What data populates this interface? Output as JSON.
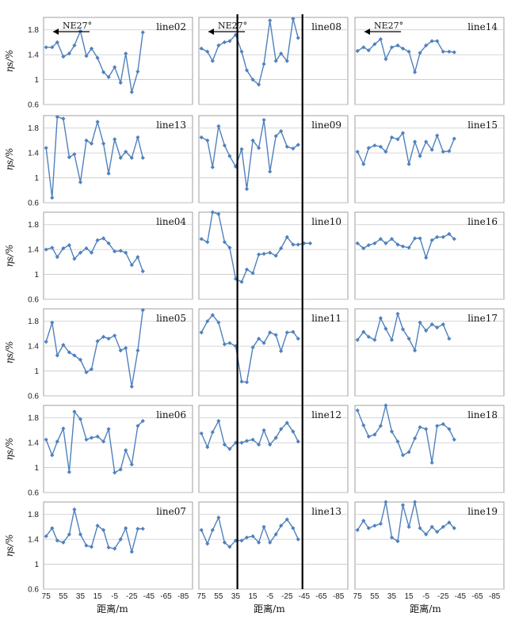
{
  "figure": {
    "x_axis_label": "距离/m",
    "y_axis_label": "ηs/%",
    "x_ticks": [
      "75",
      "55",
      "35",
      "15",
      "-5",
      "-25",
      "-45",
      "-65",
      "-85"
    ],
    "y_ticks": [
      "0.6",
      "1",
      "1.4",
      "1.8"
    ],
    "direction_label": "NE27°",
    "line_color": "#4F81BD",
    "marker_color": "#4F81BD",
    "vertical_markers_x": [
      33,
      -43
    ]
  },
  "chart_data": {
    "type": "line",
    "x": [
      75,
      68,
      62,
      55,
      48,
      42,
      35,
      28,
      22,
      15,
      8,
      2,
      -5,
      -12,
      -18,
      -25,
      -32,
      -38,
      -45,
      -52,
      -58,
      -65,
      -72,
      -78,
      -85,
      -92
    ],
    "xlim": [
      78,
      -96
    ],
    "ylim": [
      0.6,
      2.0
    ],
    "panels": [
      {
        "label": "line02",
        "col": 0,
        "row": 0,
        "arrow": true,
        "values": [
          1.52,
          1.52,
          1.6,
          1.37,
          1.42,
          1.55,
          1.78,
          1.38,
          1.5,
          1.35,
          1.12,
          1.04,
          1.2,
          0.95,
          1.42,
          0.8,
          1.13,
          1.76
        ]
      },
      {
        "label": "line08",
        "col": 1,
        "row": 0,
        "arrow": true,
        "values": [
          1.5,
          1.45,
          1.3,
          1.55,
          1.6,
          1.62,
          1.72,
          1.45,
          1.15,
          1.0,
          0.92,
          1.25,
          1.95,
          1.3,
          1.42,
          1.3,
          1.98,
          1.67
        ]
      },
      {
        "label": "line14",
        "col": 2,
        "row": 0,
        "arrow": true,
        "values": [
          1.46,
          1.52,
          1.47,
          1.57,
          1.65,
          1.33,
          1.52,
          1.55,
          1.5,
          1.45,
          1.12,
          1.43,
          1.55,
          1.62,
          1.62,
          1.45,
          1.45,
          1.44
        ]
      },
      {
        "label": "line13",
        "col": 0,
        "row": 1,
        "values": [
          1.48,
          0.68,
          1.98,
          1.95,
          1.33,
          1.38,
          0.93,
          1.6,
          1.55,
          1.9,
          1.55,
          1.07,
          1.62,
          1.32,
          1.42,
          1.32,
          1.65,
          1.32
        ]
      },
      {
        "label": "line09",
        "col": 1,
        "row": 1,
        "values": [
          1.65,
          1.6,
          1.17,
          1.83,
          1.52,
          1.35,
          1.18,
          1.46,
          0.82,
          1.6,
          1.48,
          1.93,
          1.1,
          1.67,
          1.75,
          1.5,
          1.47,
          1.53
        ]
      },
      {
        "label": "line15",
        "col": 2,
        "row": 1,
        "values": [
          1.42,
          1.22,
          1.48,
          1.52,
          1.5,
          1.42,
          1.65,
          1.62,
          1.72,
          1.22,
          1.58,
          1.35,
          1.58,
          1.45,
          1.68,
          1.42,
          1.43,
          1.63
        ]
      },
      {
        "label": "line04",
        "col": 0,
        "row": 2,
        "values": [
          1.4,
          1.43,
          1.28,
          1.42,
          1.47,
          1.25,
          1.35,
          1.42,
          1.35,
          1.55,
          1.58,
          1.5,
          1.37,
          1.38,
          1.35,
          1.15,
          1.28,
          1.05
        ]
      },
      {
        "label": "line10",
        "col": 1,
        "row": 2,
        "values": [
          1.57,
          1.52,
          2.0,
          1.97,
          1.52,
          1.43,
          0.93,
          0.88,
          1.08,
          1.02,
          1.32,
          1.33,
          1.35,
          1.3,
          1.42,
          1.6,
          1.48,
          1.48,
          1.5,
          1.5
        ]
      },
      {
        "label": "line16",
        "col": 2,
        "row": 2,
        "values": [
          1.5,
          1.42,
          1.47,
          1.5,
          1.57,
          1.5,
          1.57,
          1.48,
          1.45,
          1.43,
          1.58,
          1.58,
          1.27,
          1.55,
          1.6,
          1.6,
          1.65,
          1.57
        ]
      },
      {
        "label": "line05",
        "col": 0,
        "row": 3,
        "values": [
          1.47,
          1.78,
          1.25,
          1.42,
          1.3,
          1.25,
          1.18,
          0.98,
          1.03,
          1.48,
          1.55,
          1.52,
          1.57,
          1.33,
          1.37,
          0.75,
          1.33,
          1.98
        ]
      },
      {
        "label": "line11",
        "col": 1,
        "row": 3,
        "values": [
          1.62,
          1.8,
          1.9,
          1.78,
          1.43,
          1.45,
          1.4,
          0.83,
          0.82,
          1.38,
          1.52,
          1.45,
          1.62,
          1.58,
          1.32,
          1.62,
          1.63,
          1.52
        ]
      },
      {
        "label": "line17",
        "col": 2,
        "row": 3,
        "values": [
          1.5,
          1.63,
          1.55,
          1.5,
          1.85,
          1.68,
          1.5,
          1.92,
          1.67,
          1.52,
          1.33,
          1.78,
          1.65,
          1.75,
          1.7,
          1.75,
          1.52
        ]
      },
      {
        "label": "line06",
        "col": 0,
        "row": 4,
        "values": [
          1.45,
          1.2,
          1.42,
          1.63,
          0.93,
          1.9,
          1.78,
          1.45,
          1.48,
          1.5,
          1.42,
          1.62,
          0.92,
          0.97,
          1.28,
          1.05,
          1.67,
          1.75
        ]
      },
      {
        "label": "line12",
        "col": 1,
        "row": 4,
        "values": [
          1.55,
          1.33,
          1.57,
          1.75,
          1.37,
          1.3,
          1.4,
          1.4,
          1.43,
          1.45,
          1.37,
          1.6,
          1.37,
          1.48,
          1.62,
          1.72,
          1.58,
          1.42
        ]
      },
      {
        "label": "line18",
        "col": 2,
        "row": 4,
        "values": [
          1.92,
          1.68,
          1.5,
          1.53,
          1.67,
          2.0,
          1.58,
          1.42,
          1.2,
          1.25,
          1.47,
          1.65,
          1.62,
          1.08,
          1.67,
          1.7,
          1.62,
          1.45
        ]
      },
      {
        "label": "line07",
        "col": 0,
        "row": 5,
        "values": [
          1.45,
          1.58,
          1.38,
          1.35,
          1.48,
          1.88,
          1.48,
          1.3,
          1.28,
          1.62,
          1.55,
          1.27,
          1.25,
          1.4,
          1.58,
          1.2,
          1.57,
          1.57
        ]
      },
      {
        "label": "line13",
        "col": 1,
        "row": 5,
        "values": [
          1.55,
          1.33,
          1.55,
          1.75,
          1.35,
          1.28,
          1.38,
          1.38,
          1.43,
          1.45,
          1.35,
          1.6,
          1.35,
          1.48,
          1.62,
          1.72,
          1.58,
          1.4
        ]
      },
      {
        "label": "line19",
        "col": 2,
        "row": 5,
        "values": [
          1.55,
          1.7,
          1.58,
          1.62,
          1.65,
          2.0,
          1.43,
          1.37,
          1.95,
          1.6,
          2.0,
          1.58,
          1.48,
          1.6,
          1.52,
          1.6,
          1.67,
          1.58
        ]
      }
    ]
  }
}
